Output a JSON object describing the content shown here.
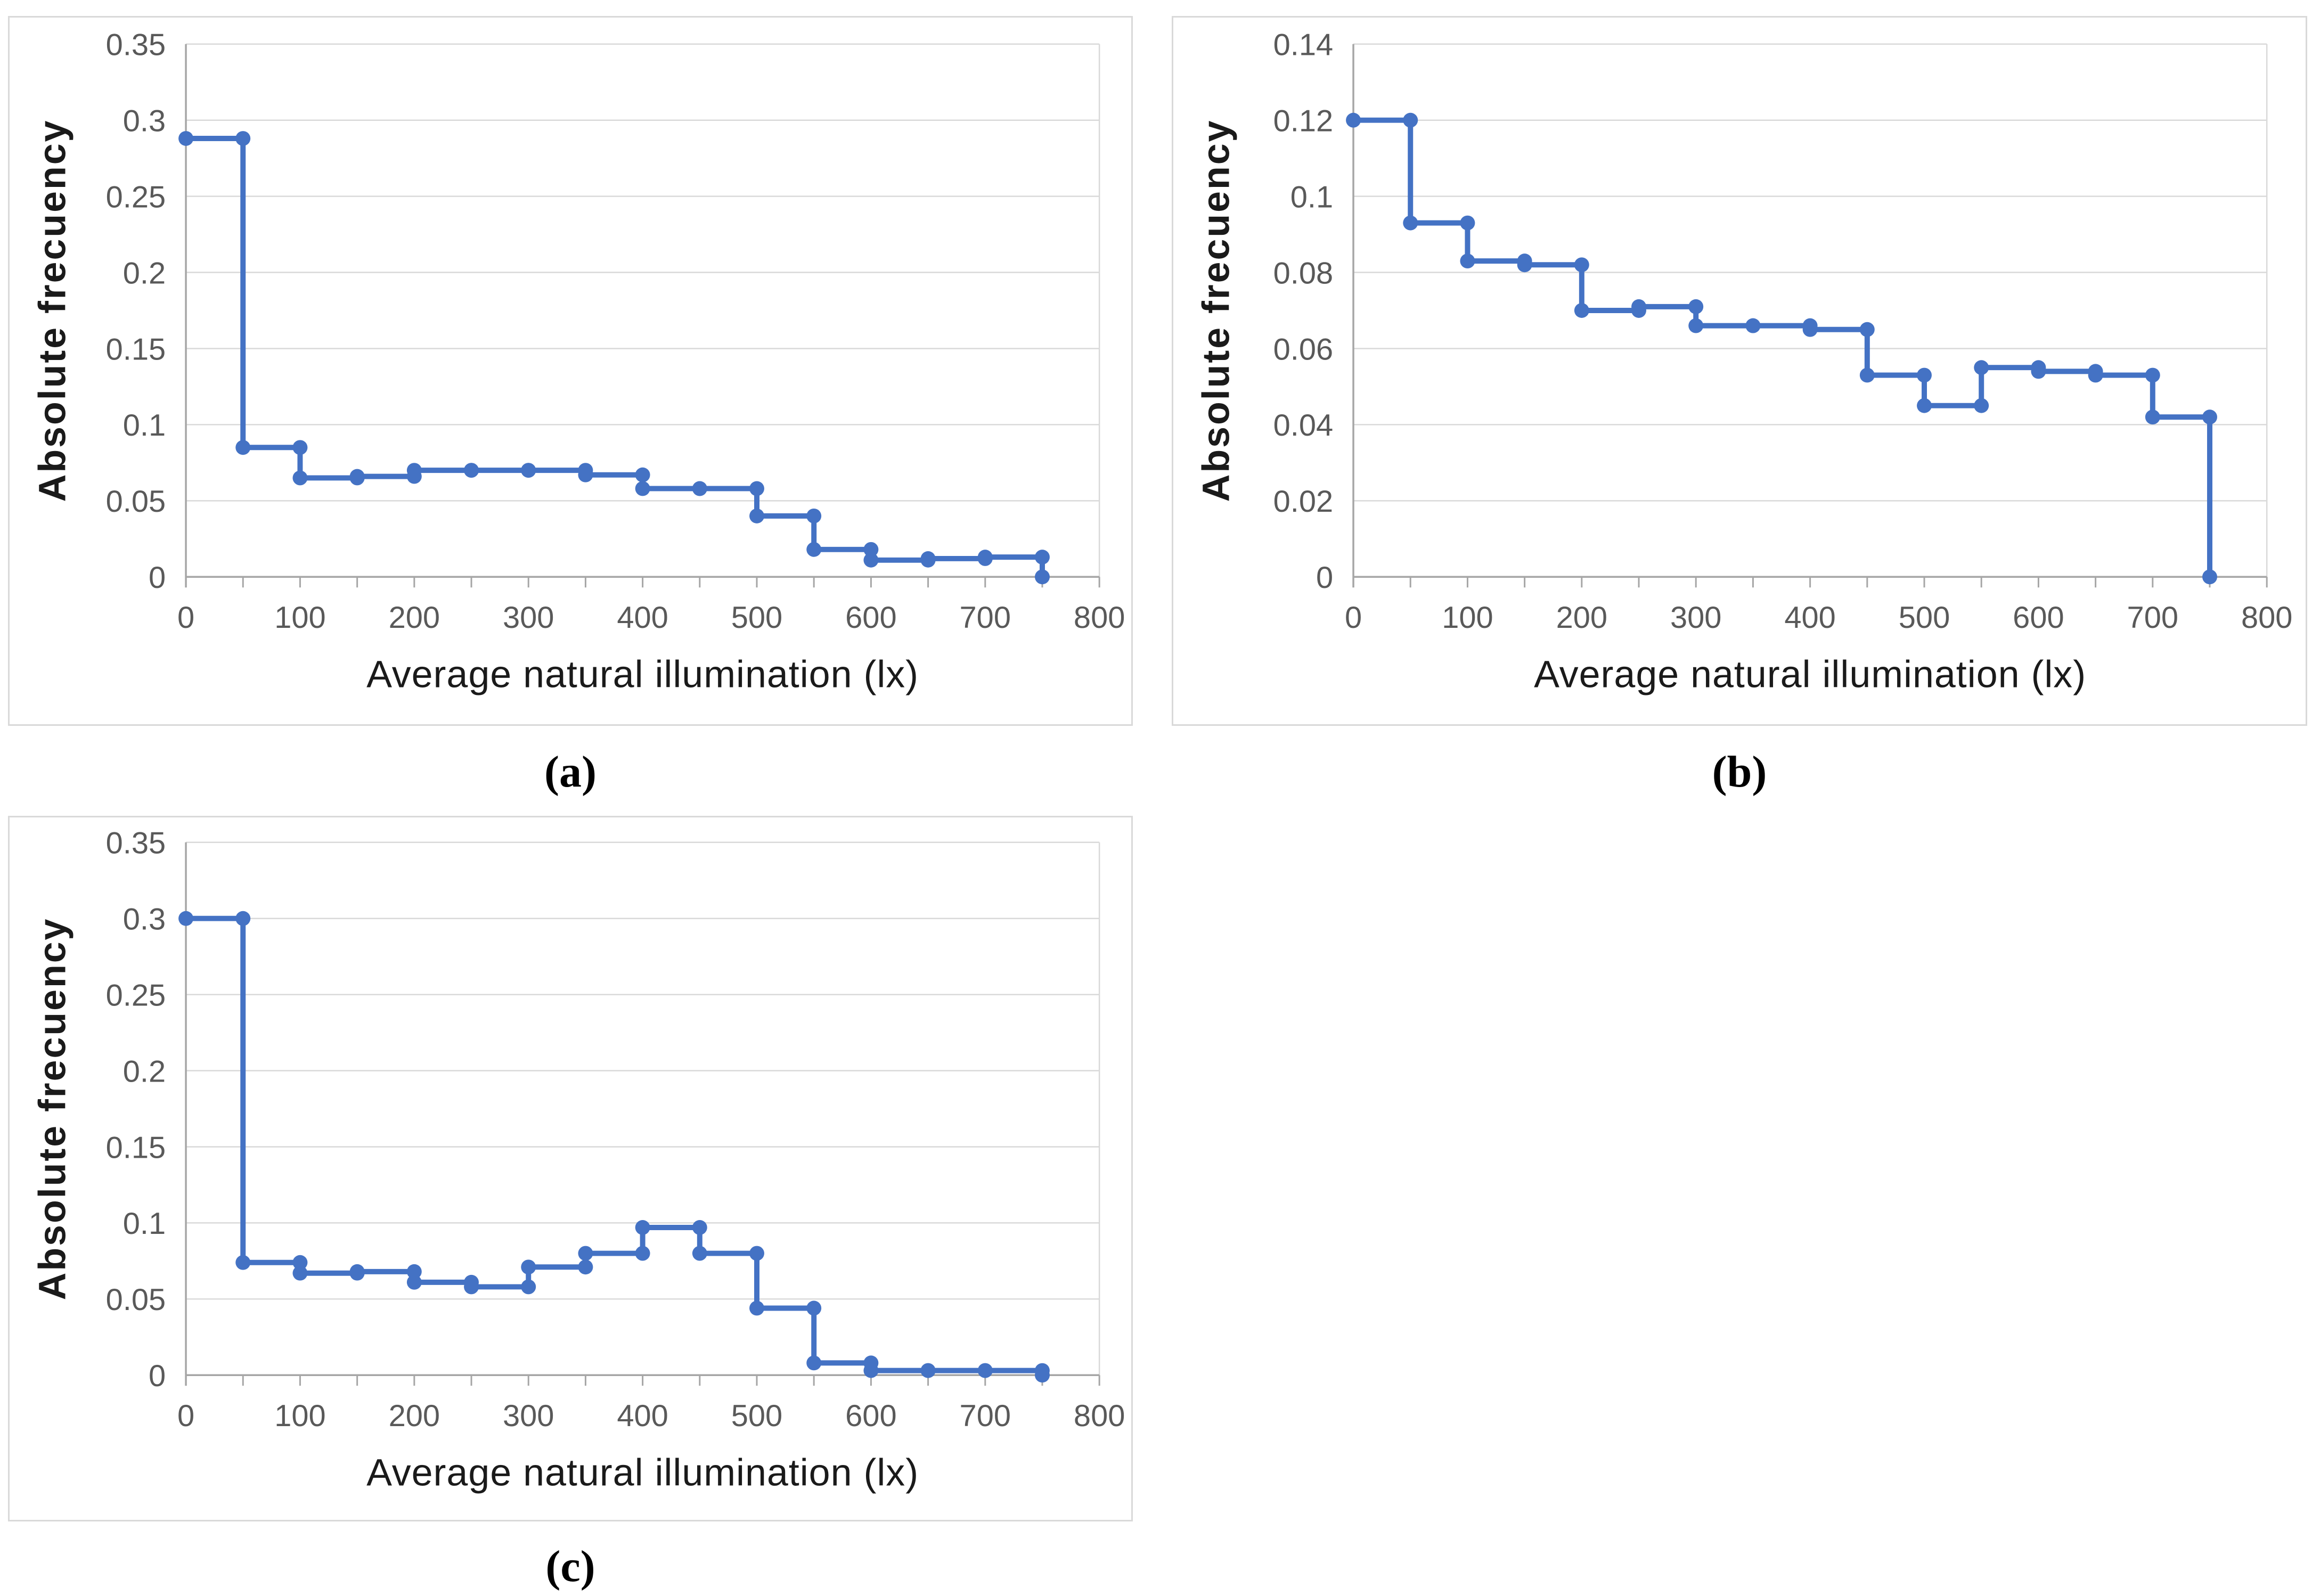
{
  "figure": {
    "background": "#ffffff",
    "panels": [
      {
        "id": "a",
        "caption": "(a)"
      },
      {
        "id": "b",
        "caption": "(b)"
      },
      {
        "id": "c",
        "caption": "(c)"
      }
    ]
  },
  "style": {
    "series_color": "#4472C4",
    "gridline_color": "#D9D9D9",
    "axis_color": "#A6A6A6",
    "tick_label_color": "#595959",
    "title_color": "#1A1A1A",
    "panel_border_color": "#D9D9D9"
  },
  "chart_data": [
    {
      "id": "a",
      "type": "line",
      "line_style": "step-with-markers",
      "title": "",
      "xlabel": "Average natural illumination (lx)",
      "ylabel": "Absolute frecuency",
      "xlim": [
        0,
        800
      ],
      "ylim": [
        0,
        0.35
      ],
      "grid": "horizontal",
      "legend": "none",
      "bin_width": 50,
      "x_tick_labels": [
        "0",
        "100",
        "200",
        "300",
        "400",
        "500",
        "600",
        "700",
        "800"
      ],
      "x_minor_tick_step": 50,
      "y_ticks": [
        {
          "v": 0,
          "label": "0"
        },
        {
          "v": 0.05,
          "label": "0.05"
        },
        {
          "v": 0.1,
          "label": "0.1"
        },
        {
          "v": 0.15,
          "label": "0.15"
        },
        {
          "v": 0.2,
          "label": "0.2"
        },
        {
          "v": 0.25,
          "label": "0.25"
        },
        {
          "v": 0.3,
          "label": "0.3"
        },
        {
          "v": 0.35,
          "label": "0.35"
        }
      ],
      "steps": [
        {
          "x0": 0,
          "x1": 50,
          "y": 0.288
        },
        {
          "x0": 50,
          "x1": 100,
          "y": 0.085
        },
        {
          "x0": 100,
          "x1": 150,
          "y": 0.065
        },
        {
          "x0": 150,
          "x1": 200,
          "y": 0.066
        },
        {
          "x0": 200,
          "x1": 250,
          "y": 0.07
        },
        {
          "x0": 250,
          "x1": 300,
          "y": 0.07
        },
        {
          "x0": 300,
          "x1": 350,
          "y": 0.07
        },
        {
          "x0": 350,
          "x1": 400,
          "y": 0.067
        },
        {
          "x0": 400,
          "x1": 450,
          "y": 0.058
        },
        {
          "x0": 450,
          "x1": 500,
          "y": 0.058
        },
        {
          "x0": 500,
          "x1": 550,
          "y": 0.04
        },
        {
          "x0": 550,
          "x1": 600,
          "y": 0.018
        },
        {
          "x0": 600,
          "x1": 650,
          "y": 0.011
        },
        {
          "x0": 650,
          "x1": 700,
          "y": 0.012
        },
        {
          "x0": 700,
          "x1": 750,
          "y": 0.013
        }
      ],
      "terminal_point": {
        "x": 750,
        "y": 0
      }
    },
    {
      "id": "b",
      "type": "line",
      "line_style": "step-with-markers",
      "title": "",
      "xlabel": "Average natural illumination (lx)",
      "ylabel": "Absolute frecuency",
      "xlim": [
        0,
        800
      ],
      "ylim": [
        0,
        0.14
      ],
      "grid": "horizontal",
      "legend": "none",
      "bin_width": 50,
      "x_tick_labels": [
        "0",
        "100",
        "200",
        "300",
        "400",
        "500",
        "600",
        "700",
        "800"
      ],
      "x_minor_tick_step": 50,
      "y_ticks": [
        {
          "v": 0,
          "label": "0"
        },
        {
          "v": 0.02,
          "label": "0.02"
        },
        {
          "v": 0.04,
          "label": "0.04"
        },
        {
          "v": 0.06,
          "label": "0.06"
        },
        {
          "v": 0.08,
          "label": "0.08"
        },
        {
          "v": 0.1,
          "label": "0.1"
        },
        {
          "v": 0.12,
          "label": "0.12"
        },
        {
          "v": 0.14,
          "label": "0.14"
        }
      ],
      "steps": [
        {
          "x0": 0,
          "x1": 50,
          "y": 0.12
        },
        {
          "x0": 50,
          "x1": 100,
          "y": 0.093
        },
        {
          "x0": 100,
          "x1": 150,
          "y": 0.083
        },
        {
          "x0": 150,
          "x1": 200,
          "y": 0.082
        },
        {
          "x0": 200,
          "x1": 250,
          "y": 0.07
        },
        {
          "x0": 250,
          "x1": 300,
          "y": 0.071
        },
        {
          "x0": 300,
          "x1": 350,
          "y": 0.066
        },
        {
          "x0": 350,
          "x1": 400,
          "y": 0.066
        },
        {
          "x0": 400,
          "x1": 450,
          "y": 0.065
        },
        {
          "x0": 450,
          "x1": 500,
          "y": 0.053
        },
        {
          "x0": 500,
          "x1": 550,
          "y": 0.045
        },
        {
          "x0": 550,
          "x1": 600,
          "y": 0.055
        },
        {
          "x0": 600,
          "x1": 650,
          "y": 0.054
        },
        {
          "x0": 650,
          "x1": 700,
          "y": 0.053
        },
        {
          "x0": 700,
          "x1": 750,
          "y": 0.042
        }
      ],
      "terminal_point": {
        "x": 750,
        "y": 0
      }
    },
    {
      "id": "c",
      "type": "line",
      "line_style": "step-with-markers",
      "title": "",
      "xlabel": "Average natural illumination (lx)",
      "ylabel": "Absolute frecuency",
      "xlim": [
        0,
        800
      ],
      "ylim": [
        0,
        0.35
      ],
      "grid": "horizontal",
      "legend": "none",
      "bin_width": 50,
      "x_tick_labels": [
        "0",
        "100",
        "200",
        "300",
        "400",
        "500",
        "600",
        "700",
        "800"
      ],
      "x_minor_tick_step": 50,
      "y_ticks": [
        {
          "v": 0,
          "label": "0"
        },
        {
          "v": 0.05,
          "label": "0.05"
        },
        {
          "v": 0.1,
          "label": "0.1"
        },
        {
          "v": 0.15,
          "label": "0.15"
        },
        {
          "v": 0.2,
          "label": "0.2"
        },
        {
          "v": 0.25,
          "label": "0.25"
        },
        {
          "v": 0.3,
          "label": "0.3"
        },
        {
          "v": 0.35,
          "label": "0.35"
        }
      ],
      "steps": [
        {
          "x0": 0,
          "x1": 50,
          "y": 0.3
        },
        {
          "x0": 50,
          "x1": 100,
          "y": 0.074
        },
        {
          "x0": 100,
          "x1": 150,
          "y": 0.067
        },
        {
          "x0": 150,
          "x1": 200,
          "y": 0.068
        },
        {
          "x0": 200,
          "x1": 250,
          "y": 0.061
        },
        {
          "x0": 250,
          "x1": 300,
          "y": 0.058
        },
        {
          "x0": 300,
          "x1": 350,
          "y": 0.071
        },
        {
          "x0": 350,
          "x1": 400,
          "y": 0.08
        },
        {
          "x0": 400,
          "x1": 450,
          "y": 0.097
        },
        {
          "x0": 450,
          "x1": 500,
          "y": 0.08
        },
        {
          "x0": 500,
          "x1": 550,
          "y": 0.044
        },
        {
          "x0": 550,
          "x1": 600,
          "y": 0.008
        },
        {
          "x0": 600,
          "x1": 650,
          "y": 0.003
        },
        {
          "x0": 650,
          "x1": 700,
          "y": 0.003
        },
        {
          "x0": 700,
          "x1": 750,
          "y": 0.003
        }
      ],
      "terminal_point": {
        "x": 750,
        "y": 0
      }
    }
  ]
}
